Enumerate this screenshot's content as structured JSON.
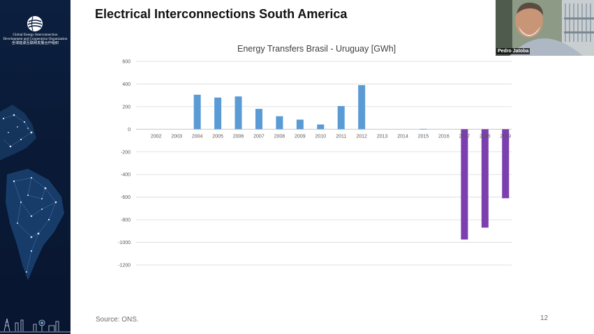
{
  "slide": {
    "title": "Electrical Interconnections South America",
    "source": "Source: ONS.",
    "page_number": "12"
  },
  "organization": {
    "name_line1": "Global Energy Interconnection",
    "name_line2": "Development and Cooperation Organization",
    "name_chinese": "全球能源互联网发展合作组织"
  },
  "video": {
    "speaker_name": "Pedro Jatoba"
  },
  "colors": {
    "positive_bar": "#5b9bd5",
    "negative_bar": "#7b3fb0",
    "gridline": "#d9d9d9",
    "sidebar": "#0b1f3f"
  },
  "chart_data": {
    "type": "bar",
    "title": "Energy Transfers Brasil - Uruguay [GWh]",
    "xlabel": "",
    "ylabel": "",
    "ylim": [
      -1200,
      600
    ],
    "yticks": [
      600,
      400,
      200,
      0,
      -200,
      -400,
      -600,
      -800,
      -1000,
      -1200
    ],
    "categories": [
      "2002",
      "2003",
      "2004",
      "2005",
      "2006",
      "2007",
      "2008",
      "2009",
      "2010",
      "2011",
      "2012",
      "2013",
      "2014",
      "2015",
      "2016",
      "2017",
      "2018",
      "2019"
    ],
    "values": [
      0,
      0,
      305,
      280,
      290,
      180,
      115,
      85,
      42,
      205,
      390,
      0,
      0,
      3,
      0,
      -975,
      -870,
      -610
    ],
    "grid": true,
    "legend": "none"
  }
}
